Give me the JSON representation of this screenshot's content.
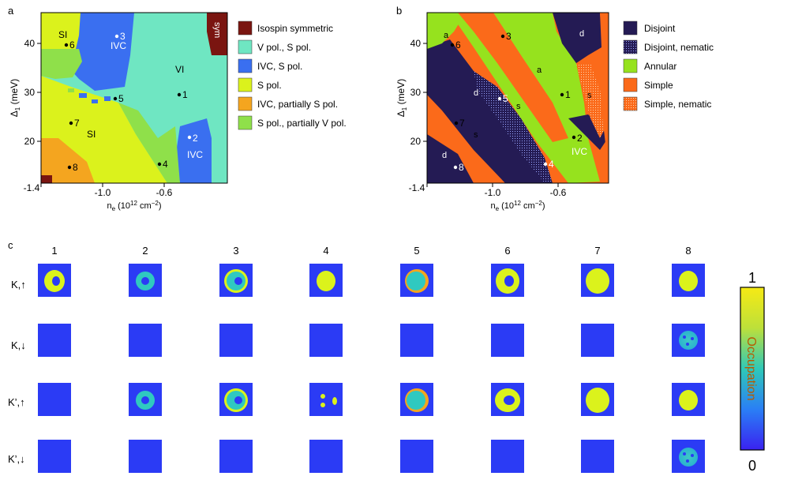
{
  "colors": {
    "isospin_symmetric": "#7a1510",
    "v_pol_s_pol": "#6fe6c2",
    "ivc_s_pol": "#3a6ff0",
    "s_pol": "#dbf21c",
    "ivc_partially_s_pol": "#f4a51f",
    "s_pol_partially_v_pol": "#8fe04a",
    "disjoint": "#241b54",
    "annular": "#96e21e",
    "simple": "#fb6a1a",
    "occ_low": "#2b3bf5",
    "occ_mid": "#2fc9c0",
    "occ_high": "#f4ec1a"
  },
  "panel_a": {
    "letter": "a",
    "xlabel": "n",
    "xlabel_sub": "e",
    "xlabel_unit": " (10",
    "xlabel_sup": "12",
    "xlabel_tail": " cm",
    "xlabel_sup2": "−2",
    "xlabel_close": ")",
    "ylabel": "Δ",
    "ylabel_sub": "1",
    "ylabel_unit": " (meV)",
    "xticks": [
      "-1.4",
      "-1.0",
      "-0.6"
    ],
    "yticks": [
      "40",
      "30",
      "20"
    ],
    "region_labels": [
      "SI",
      "IVC",
      "VI",
      "SI",
      "IVC",
      "sym"
    ],
    "points": [
      "1",
      "2",
      "3",
      "4",
      "5",
      "6",
      "7",
      "8"
    ],
    "legend": [
      {
        "label": "Isospin symmetric",
        "color_key": "isospin_symmetric"
      },
      {
        "label": "V pol., S pol.",
        "color_key": "v_pol_s_pol"
      },
      {
        "label": "IVC, S pol.",
        "color_key": "ivc_s_pol"
      },
      {
        "label": "S pol.",
        "color_key": "s_pol"
      },
      {
        "label": "IVC, partially S pol.",
        "color_key": "ivc_partially_s_pol"
      },
      {
        "label": "S pol., partially V pol.",
        "color_key": "s_pol_partially_v_pol"
      }
    ]
  },
  "panel_b": {
    "letter": "b",
    "xlabel": "n",
    "xlabel_sub": "e",
    "xlabel_unit": " (10",
    "xlabel_sup": "12",
    "xlabel_tail": " cm",
    "xlabel_sup2": "−2",
    "xlabel_close": ")",
    "ylabel": "Δ",
    "ylabel_sub": "1",
    "ylabel_unit": " (meV)",
    "xticks": [
      "-1.4",
      "-1.0",
      "-0.6"
    ],
    "yticks": [
      "40",
      "30",
      "20"
    ],
    "region_labels": [
      "a",
      "d",
      "a",
      "d",
      "s",
      "s",
      "d",
      "s",
      "IVC"
    ],
    "points": [
      "1",
      "2",
      "3",
      "4",
      "5",
      "6",
      "7",
      "8"
    ],
    "legend": [
      {
        "label": "Disjoint",
        "color_key": "disjoint",
        "pattern": false
      },
      {
        "label": "Disjoint, nematic",
        "color_key": "disjoint",
        "pattern": true
      },
      {
        "label": "Annular",
        "color_key": "annular",
        "pattern": false
      },
      {
        "label": "Simple",
        "color_key": "simple",
        "pattern": false
      },
      {
        "label": "Simple, nematic",
        "color_key": "simple",
        "pattern": true
      }
    ]
  },
  "panel_c": {
    "letter": "c",
    "columns": [
      "1",
      "2",
      "3",
      "4",
      "5",
      "6",
      "7",
      "8"
    ],
    "rows": [
      "K,↑",
      "K,↓",
      "K’,↑",
      "K’,↓"
    ],
    "colorbar": {
      "max": "1",
      "min": "0",
      "label": "Occupation"
    }
  }
}
